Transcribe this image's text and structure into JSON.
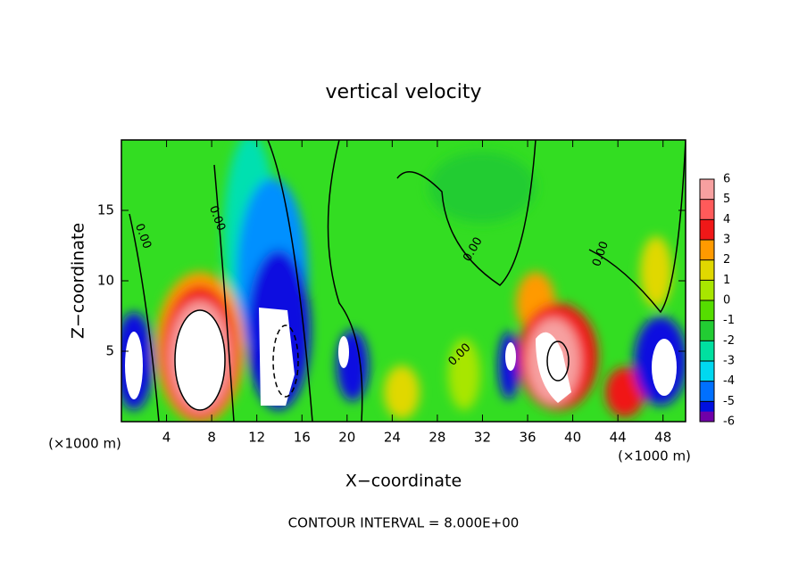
{
  "chart_data": {
    "type": "contour",
    "title": "vertical velocity",
    "x_label": "X−coordinate",
    "y_label": "Z−coordinate",
    "x_unit": "(×1000 m)",
    "y_unit": "(×1000 m)",
    "footer": "CONTOUR INTERVAL = 8.000E+00",
    "contour_label": "0.00",
    "xlim": [
      0,
      50
    ],
    "xticks": [
      4,
      8,
      12,
      16,
      20,
      24,
      28,
      32,
      36,
      40,
      44,
      48
    ],
    "ylim": [
      0,
      20
    ],
    "yticks": [
      5,
      10,
      15
    ],
    "colorbar": {
      "lim": [
        -6,
        6
      ],
      "ticks": [
        6,
        5,
        4,
        3,
        2,
        1,
        0,
        -1,
        -2,
        -3,
        -4,
        -5,
        -6
      ],
      "colors": [
        "#f7a0a0",
        "#ff5a5a",
        "#f01818",
        "#ff9a00",
        "#e0d800",
        "#a8e600",
        "#55dd00",
        "#22cc33",
        "#00e0a0",
        "#00d8f0",
        "#0070ff",
        "#0010e0"
      ],
      "bottom_color": "#7000a8"
    }
  }
}
